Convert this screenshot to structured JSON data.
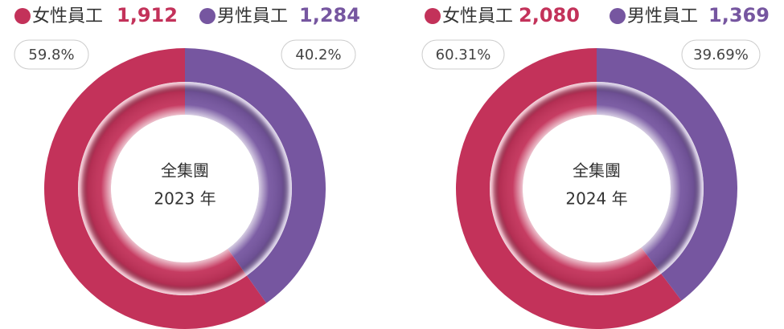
{
  "chart_data": [
    {
      "type": "pie",
      "categories": [
        "女性員工",
        "男性員工"
      ],
      "values": [
        1912,
        1284
      ],
      "value_labels": [
        "1,912",
        "1,284"
      ],
      "shares": [
        59.8,
        40.2
      ],
      "share_labels": [
        "59.8%",
        "40.2%"
      ],
      "colors": [
        "#c3325a",
        "#7656a0"
      ],
      "center_title": "全集團",
      "center_subtitle": "2023 年"
    },
    {
      "type": "pie",
      "categories": [
        "女性員工",
        "男性員工"
      ],
      "values": [
        2080,
        1369
      ],
      "value_labels": [
        "2,080",
        "1,369"
      ],
      "shares": [
        60.31,
        39.69
      ],
      "share_labels": [
        "60.31%",
        "39.69%"
      ],
      "colors": [
        "#c3325a",
        "#7656a0"
      ],
      "center_title": "全集團",
      "center_subtitle": "2024 年"
    }
  ]
}
